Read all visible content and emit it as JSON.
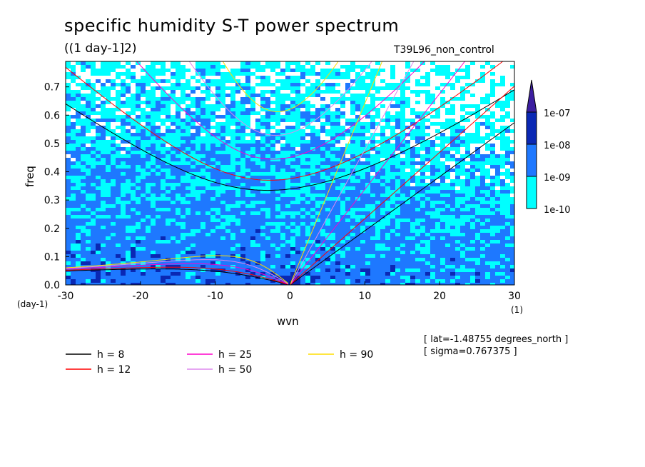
{
  "header": {
    "title": "specific humidity S-T power spectrum",
    "subtitle": "((1 day-1]2)",
    "case_label": "T39L96_non_control"
  },
  "metadata": {
    "lat": "[ lat=-1.48755 degrees_north ]",
    "sigma": "[ sigma=0.767375 ]"
  },
  "chart_data": {
    "type": "heatmap",
    "title": "specific humidity S-T power spectrum",
    "subtitle": "((1 day-1]2)",
    "xlabel": "wvn",
    "ylabel": "freq",
    "x_unit_label": "(1)",
    "y_unit_label": "(day-1)",
    "xlim": [
      -30,
      30
    ],
    "ylim": [
      0,
      0.79
    ],
    "x_ticks": [
      -30,
      -20,
      -10,
      0,
      10,
      20,
      30
    ],
    "x_tick_labels": [
      "-30",
      "-20",
      "-10",
      "0",
      "10",
      "20",
      "30"
    ],
    "y_ticks": [
      0.0,
      0.1,
      0.2,
      0.3,
      0.4,
      0.5,
      0.6,
      0.7
    ],
    "y_tick_labels": [
      "0.0",
      "0.1",
      "0.2",
      "0.3",
      "0.4",
      "0.5",
      "0.6",
      "0.7"
    ],
    "colorbar": {
      "levels": [
        "1e-10",
        "1e-09",
        "1e-08",
        "1e-07"
      ],
      "colors": [
        "#00ffff",
        "#1e78ff",
        "#0a28b4",
        "#3c1ea0"
      ]
    },
    "dispersion_curves": [
      {
        "name": "h =  8",
        "color": "#000000",
        "h": 8
      },
      {
        "name": "h = 12",
        "color": "#ff0000",
        "h": 12
      },
      {
        "name": "h = 25",
        "color": "#ff00cc",
        "h": 25
      },
      {
        "name": "h = 50",
        "color": "#dd88ee",
        "h": 50
      },
      {
        "name": "h = 90",
        "color": "#ffdd00",
        "h": 90
      }
    ],
    "grid": false
  }
}
